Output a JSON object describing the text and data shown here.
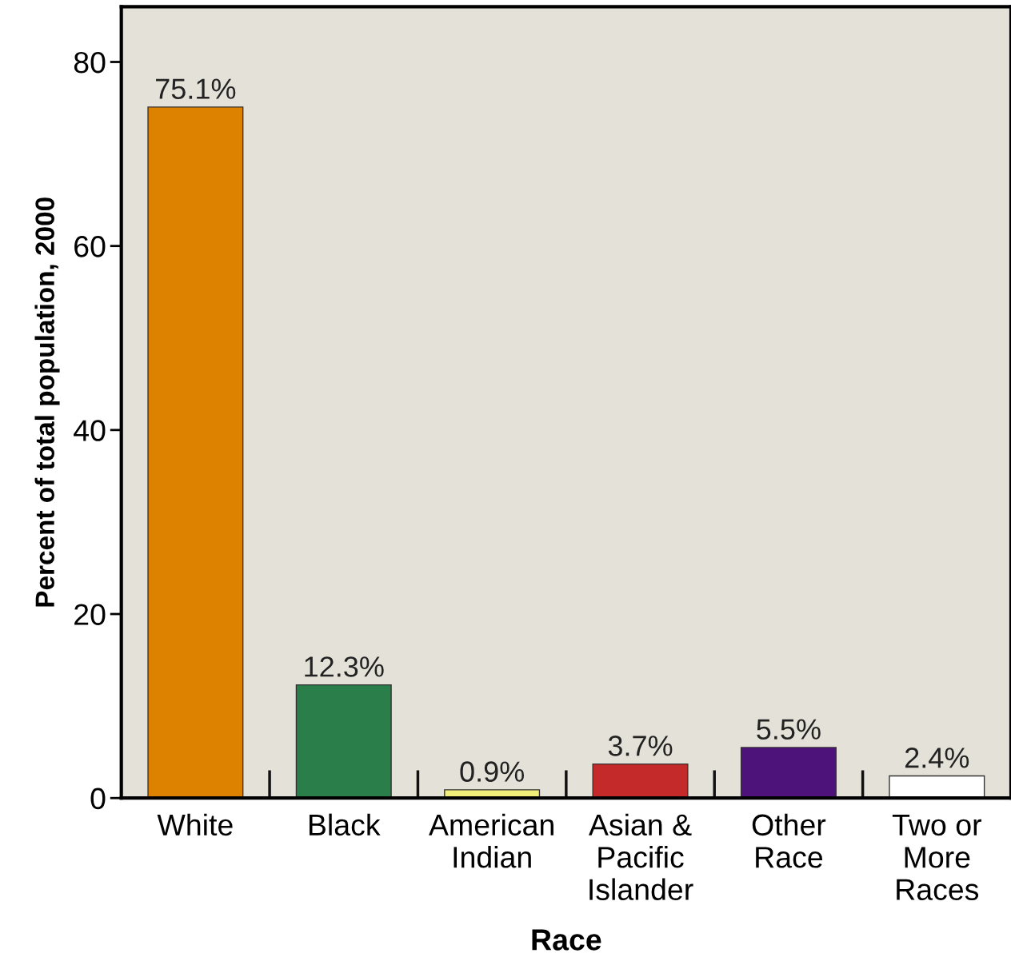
{
  "chart_data": {
    "type": "bar",
    "xlabel": "Race",
    "ylabel": "Percent of total population, 2000",
    "categories": [
      "White",
      "Black",
      "American\nIndian",
      "Asian &\nPacific\nIslander",
      "Other\nRace",
      "Two or\nMore\nRaces"
    ],
    "values": [
      75.1,
      12.3,
      0.9,
      3.7,
      5.5,
      2.4
    ],
    "colors": [
      "#dc8200",
      "#2a7e4a",
      "#f2ee7a",
      "#c42a2a",
      "#4e137a",
      "#ffffff"
    ],
    "value_labels": [
      "75.1%",
      "12.3%",
      "0.9%",
      "3.7%",
      "5.5%",
      "2.4%"
    ],
    "ylim": [
      0,
      86
    ],
    "yticks": [
      0,
      20,
      40,
      60,
      80
    ],
    "grid": false,
    "legend": false
  }
}
